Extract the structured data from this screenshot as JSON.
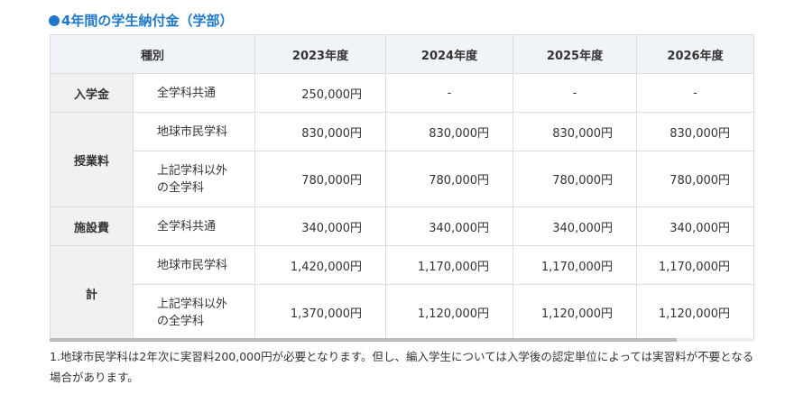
{
  "title": "4年間の学生納付金（学部）",
  "headers": [
    "種別",
    "2023年度",
    "2024年度",
    "2025年度",
    "2026年度"
  ],
  "rows": {
    "admission": {
      "category": "入学金",
      "sub": "全学科共通",
      "values": [
        "250,000円",
        "-",
        "-",
        "-"
      ]
    },
    "tuition": {
      "category": "授業料",
      "rows": [
        {
          "sub": "地球市民学科",
          "values": [
            "830,000円",
            "830,000円",
            "830,000円",
            "830,000円"
          ]
        },
        {
          "sub": "上記学科以外の全学科",
          "values": [
            "780,000円",
            "780,000円",
            "780,000円",
            "780,000円"
          ]
        }
      ]
    },
    "facility": {
      "category": "施設費",
      "sub": "全学科共通",
      "values": [
        "340,000円",
        "340,000円",
        "340,000円",
        "340,000円"
      ]
    },
    "total": {
      "category": "計",
      "rows": [
        {
          "sub": "地球市民学科",
          "values": [
            "1,420,000円",
            "1,170,000円",
            "1,170,000円",
            "1,170,000円"
          ]
        },
        {
          "sub": "上記学科以外の全学科",
          "values": [
            "1,370,000円",
            "1,120,000円",
            "1,120,000円",
            "1,120,000円"
          ]
        }
      ]
    }
  },
  "note": "1.地球市民学科は2年次に実習料200,000円が必要となります。但し、編入学生については入学後の認定単位によっては実習料が不要となる場合があります。",
  "colors": {
    "accent": "#1f78c8",
    "header_bg": "#f0f4f9",
    "category_bg": "#f1f1f1"
  }
}
